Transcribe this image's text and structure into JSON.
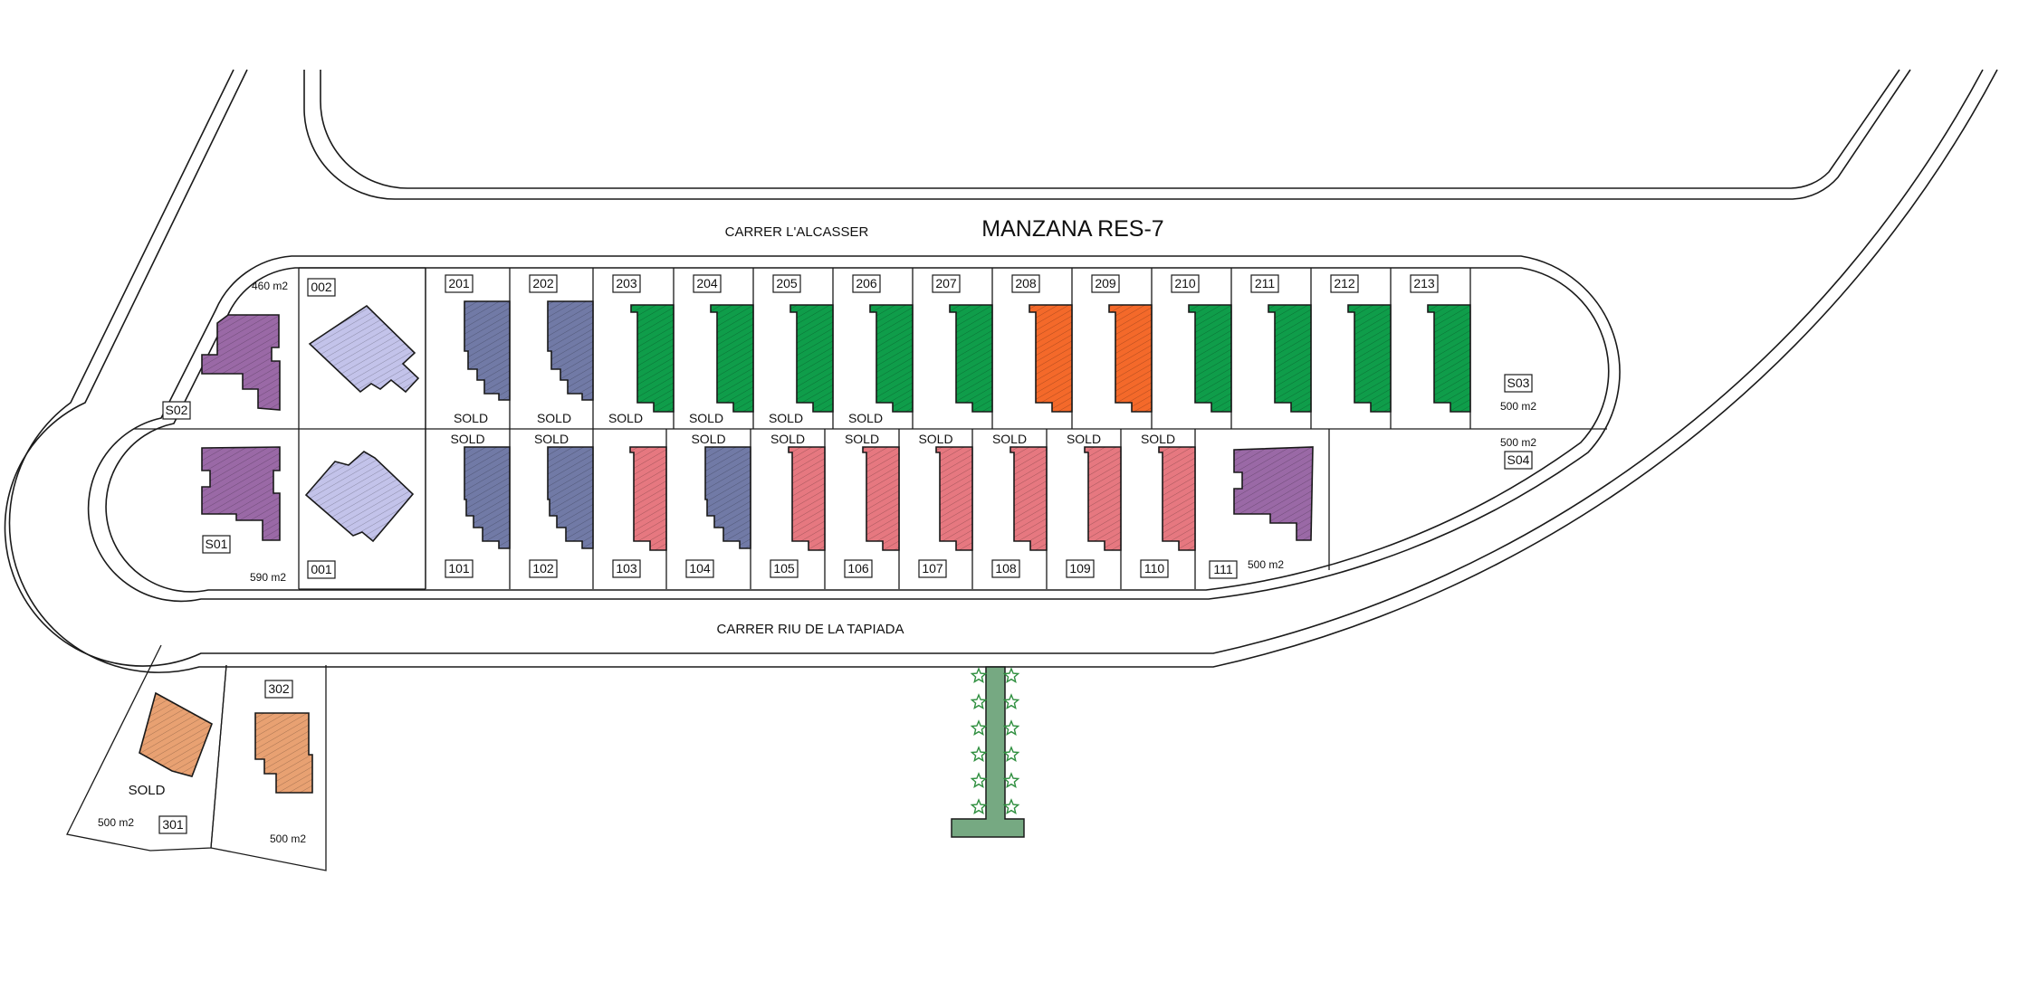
{
  "title": "MANZANA RES-7",
  "streets": {
    "north": "CARRER L'ALCASSER",
    "south": "CARRER RIU DE LA TAPIADA"
  },
  "sold_label": "SOLD",
  "colors": {
    "purple": "#9a69a6",
    "lavender": "#c3c3ea",
    "slate": "#717aa6",
    "green": "#0f9d4a",
    "orange": "#f4692a",
    "pink": "#e67880",
    "peach": "#e8a172",
    "park": "#5e9a6c",
    "star": "#2f8f3f"
  },
  "plots": [
    {
      "id": "S02",
      "label": "S02",
      "area": "460 m2",
      "status": "",
      "color": "purple",
      "shape": "villa"
    },
    {
      "id": "002",
      "label": "002",
      "area": "",
      "status": "",
      "color": "lavender",
      "shape": "diamond"
    },
    {
      "id": "201",
      "label": "201",
      "area": "",
      "status": "SOLD",
      "color": "slate",
      "shape": "row-top"
    },
    {
      "id": "202",
      "label": "202",
      "area": "",
      "status": "SOLD",
      "color": "slate",
      "shape": "row-top"
    },
    {
      "id": "203",
      "label": "203",
      "area": "",
      "status": "SOLD",
      "color": "green",
      "shape": "row-top-l"
    },
    {
      "id": "204",
      "label": "204",
      "area": "",
      "status": "SOLD",
      "color": "green",
      "shape": "row-top-l"
    },
    {
      "id": "205",
      "label": "205",
      "area": "",
      "status": "SOLD",
      "color": "green",
      "shape": "row-top-l"
    },
    {
      "id": "206",
      "label": "206",
      "area": "",
      "status": "SOLD",
      "color": "green",
      "shape": "row-top-l"
    },
    {
      "id": "207",
      "label": "207",
      "area": "",
      "status": "",
      "color": "green",
      "shape": "row-top-l"
    },
    {
      "id": "208",
      "label": "208",
      "area": "",
      "status": "",
      "color": "orange",
      "shape": "row-top-l"
    },
    {
      "id": "209",
      "label": "209",
      "area": "",
      "status": "",
      "color": "orange",
      "shape": "row-top-l"
    },
    {
      "id": "210",
      "label": "210",
      "area": "",
      "status": "",
      "color": "green",
      "shape": "row-top-l"
    },
    {
      "id": "211",
      "label": "211",
      "area": "",
      "status": "",
      "color": "green",
      "shape": "row-top-l"
    },
    {
      "id": "212",
      "label": "212",
      "area": "",
      "status": "",
      "color": "green",
      "shape": "row-top-l"
    },
    {
      "id": "213",
      "label": "213",
      "area": "",
      "status": "",
      "color": "green",
      "shape": "row-top-l"
    },
    {
      "id": "S03",
      "label": "S03",
      "area": "500 m2",
      "status": "",
      "color": "",
      "shape": "none"
    },
    {
      "id": "S01",
      "label": "S01",
      "area": "590 m2",
      "status": "",
      "color": "purple",
      "shape": "villa"
    },
    {
      "id": "001",
      "label": "001",
      "area": "",
      "status": "",
      "color": "lavender",
      "shape": "diamond"
    },
    {
      "id": "101",
      "label": "101",
      "area": "",
      "status": "SOLD",
      "color": "slate",
      "shape": "row-bottom"
    },
    {
      "id": "102",
      "label": "102",
      "area": "",
      "status": "SOLD",
      "color": "slate",
      "shape": "row-bottom"
    },
    {
      "id": "103",
      "label": "103",
      "area": "",
      "status": "",
      "color": "pink",
      "shape": "row-bottom"
    },
    {
      "id": "104",
      "label": "104",
      "area": "",
      "status": "SOLD",
      "color": "slate",
      "shape": "row-bottom"
    },
    {
      "id": "105",
      "label": "105",
      "area": "",
      "status": "SOLD",
      "color": "pink",
      "shape": "row-bottom"
    },
    {
      "id": "106",
      "label": "106",
      "area": "",
      "status": "SOLD",
      "color": "pink",
      "shape": "row-bottom"
    },
    {
      "id": "107",
      "label": "107",
      "area": "",
      "status": "SOLD",
      "color": "pink",
      "shape": "row-bottom"
    },
    {
      "id": "108",
      "label": "108",
      "area": "",
      "status": "SOLD",
      "color": "pink",
      "shape": "row-bottom"
    },
    {
      "id": "109",
      "label": "109",
      "area": "",
      "status": "SOLD",
      "color": "pink",
      "shape": "row-bottom"
    },
    {
      "id": "110",
      "label": "110",
      "area": "",
      "status": "SOLD",
      "color": "pink",
      "shape": "row-bottom"
    },
    {
      "id": "111",
      "label": "111",
      "area": "500 m2",
      "status": "",
      "color": "purple",
      "shape": "villa"
    },
    {
      "id": "S04",
      "label": "S04",
      "area": "500 m2",
      "status": "",
      "color": "",
      "shape": "none"
    },
    {
      "id": "301",
      "label": "301",
      "area": "500 m2",
      "status": "SOLD",
      "color": "peach",
      "shape": "tilted"
    },
    {
      "id": "302",
      "label": "302",
      "area": "500 m2",
      "status": "",
      "color": "peach",
      "shape": "villa-small"
    }
  ]
}
